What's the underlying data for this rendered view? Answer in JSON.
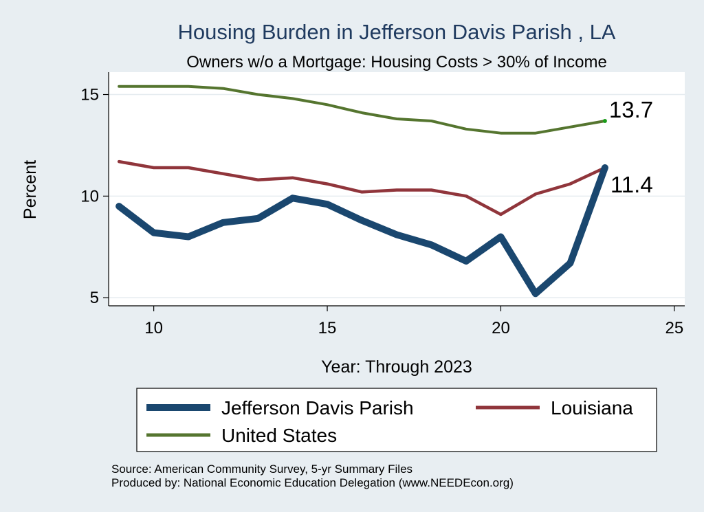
{
  "chart_data": {
    "type": "line",
    "title": "Housing Burden in Jefferson Davis Parish , LA",
    "subtitle": "Owners w/o a Mortgage: Housing Costs > 30% of Income",
    "xlabel": "Year: Through 2023",
    "ylabel": "Percent",
    "x": [
      9,
      10,
      11,
      12,
      13,
      14,
      15,
      16,
      17,
      18,
      19,
      20,
      21,
      22,
      23
    ],
    "xlim": [
      8.7,
      25.3
    ],
    "ylim": [
      4.6,
      16.1
    ],
    "xticks": [
      10,
      15,
      20,
      25
    ],
    "yticks": [
      5,
      10,
      15
    ],
    "grid": true,
    "series": [
      {
        "name": "Jefferson Davis Parish",
        "color": "#1a476f",
        "values": [
          9.5,
          8.2,
          8.0,
          8.7,
          8.9,
          9.9,
          9.6,
          8.8,
          8.1,
          7.6,
          6.8,
          8.0,
          5.2,
          6.7,
          11.4
        ]
      },
      {
        "name": "Louisiana",
        "color": "#90353b",
        "values": [
          11.7,
          11.4,
          11.4,
          11.1,
          10.8,
          10.9,
          10.6,
          10.2,
          10.3,
          10.3,
          10.0,
          9.1,
          10.1,
          10.6,
          11.4
        ]
      },
      {
        "name": "United States",
        "color": "#55752f",
        "values": [
          15.4,
          15.4,
          15.4,
          15.3,
          15.0,
          14.8,
          14.5,
          14.1,
          13.8,
          13.7,
          13.3,
          13.1,
          13.1,
          13.4,
          13.7
        ]
      }
    ],
    "end_labels": [
      "13.7",
      "11.4"
    ],
    "legend_position": "bottom"
  },
  "notes": {
    "source": "Source: American Community Survey, 5-yr Summary Files",
    "produced_by": "Produced by: National Economic Education Delegation (www.NEEDEcon.org)"
  }
}
